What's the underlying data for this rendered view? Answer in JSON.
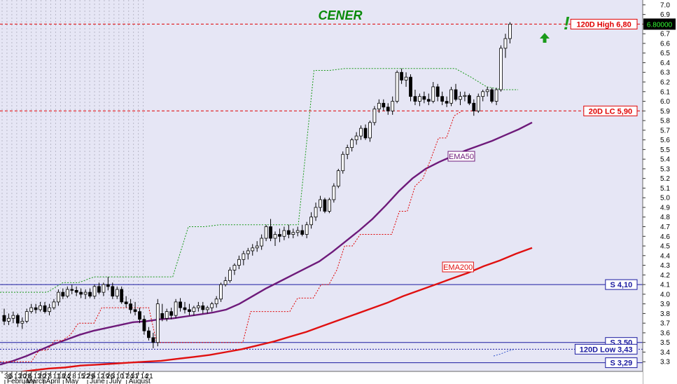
{
  "chart_data": {
    "type": "candlestick",
    "title": "CENER",
    "ylim": [
      3.2,
      7.05
    ],
    "y_ticks": [
      "3.3",
      "3.4",
      "3.5",
      "3.6",
      "3.7",
      "3.8",
      "3.9",
      "4.0",
      "4.1",
      "4.2",
      "4.3",
      "4.4",
      "4.5",
      "4.6",
      "4.7",
      "4.8",
      "4.9",
      "5.0",
      "5.1",
      "5.2",
      "5.3",
      "5.4",
      "5.5",
      "5.6",
      "5.7",
      "5.8",
      "5.9",
      "6.0",
      "6.1",
      "6.2",
      "6.3",
      "6.4",
      "6.5",
      "6.6",
      "6.7",
      "6.8",
      "6.9",
      "7.0"
    ],
    "x_day_ticks": [
      "30",
      "6",
      "13",
      "20",
      "28",
      "6",
      "13",
      "20",
      "27",
      "3",
      "11",
      "18",
      "24",
      "2",
      "8",
      "15",
      "22",
      "29",
      "6",
      "12",
      "19",
      "26",
      "3",
      "10",
      "17",
      "24",
      "31",
      "7",
      "14",
      "21"
    ],
    "x_month_labels": [
      "February",
      "March",
      "April",
      "May",
      "June",
      "July",
      "August"
    ],
    "candles": [
      [
        3.78,
        3.85,
        3.68,
        3.72
      ],
      [
        3.72,
        3.8,
        3.68,
        3.75
      ],
      [
        3.75,
        3.82,
        3.7,
        3.78
      ],
      [
        3.78,
        3.8,
        3.66,
        3.7
      ],
      [
        3.7,
        3.76,
        3.64,
        3.72
      ],
      [
        3.72,
        3.85,
        3.7,
        3.82
      ],
      [
        3.82,
        3.9,
        3.8,
        3.86
      ],
      [
        3.86,
        3.9,
        3.8,
        3.84
      ],
      [
        3.84,
        3.92,
        3.82,
        3.88
      ],
      [
        3.88,
        3.92,
        3.8,
        3.82
      ],
      [
        3.82,
        3.9,
        3.78,
        3.86
      ],
      [
        3.86,
        3.95,
        3.84,
        3.92
      ],
      [
        3.92,
        4.05,
        3.88,
        4.02
      ],
      [
        4.02,
        4.06,
        3.95,
        3.98
      ],
      [
        3.98,
        4.08,
        3.96,
        4.05
      ],
      [
        4.05,
        4.1,
        4.0,
        4.04
      ],
      [
        4.04,
        4.08,
        3.98,
        4.02
      ],
      [
        4.02,
        4.06,
        3.96,
        4.0
      ],
      [
        4.0,
        4.05,
        3.95,
        4.02
      ],
      [
        4.02,
        4.06,
        3.96,
        3.98
      ],
      [
        3.98,
        4.1,
        3.95,
        4.08
      ],
      [
        4.08,
        4.12,
        4.0,
        4.02
      ],
      [
        4.02,
        4.12,
        3.98,
        4.1
      ],
      [
        4.1,
        4.18,
        4.04,
        4.08
      ],
      [
        4.08,
        4.12,
        3.95,
        3.98
      ],
      [
        3.98,
        4.08,
        3.95,
        4.05
      ],
      [
        4.05,
        4.08,
        3.9,
        3.92
      ],
      [
        3.92,
        3.98,
        3.86,
        3.9
      ],
      [
        3.9,
        3.95,
        3.8,
        3.84
      ],
      [
        3.84,
        3.92,
        3.78,
        3.82
      ],
      [
        3.82,
        3.86,
        3.7,
        3.74
      ],
      [
        3.74,
        3.78,
        3.58,
        3.62
      ],
      [
        3.62,
        3.66,
        3.52,
        3.55
      ],
      [
        3.55,
        3.6,
        3.44,
        3.5
      ],
      [
        3.5,
        3.95,
        3.46,
        3.9
      ],
      [
        3.8,
        3.9,
        3.72,
        3.75
      ],
      [
        3.75,
        3.85,
        3.72,
        3.82
      ],
      [
        3.82,
        3.86,
        3.74,
        3.78
      ],
      [
        3.78,
        3.95,
        3.75,
        3.92
      ],
      [
        3.92,
        3.96,
        3.82,
        3.86
      ],
      [
        3.86,
        3.92,
        3.8,
        3.84
      ],
      [
        3.84,
        3.9,
        3.78,
        3.82
      ],
      [
        3.82,
        3.88,
        3.78,
        3.86
      ],
      [
        3.86,
        3.92,
        3.82,
        3.88
      ],
      [
        3.88,
        3.92,
        3.8,
        3.84
      ],
      [
        3.84,
        3.88,
        3.8,
        3.86
      ],
      [
        3.86,
        3.92,
        3.82,
        3.9
      ],
      [
        3.9,
        3.98,
        3.86,
        3.95
      ],
      [
        3.95,
        4.12,
        3.92,
        4.1
      ],
      [
        4.1,
        4.18,
        4.08,
        4.14
      ],
      [
        4.14,
        4.28,
        4.12,
        4.25
      ],
      [
        4.25,
        4.32,
        4.2,
        4.3
      ],
      [
        4.3,
        4.4,
        4.26,
        4.36
      ],
      [
        4.36,
        4.45,
        4.3,
        4.42
      ],
      [
        4.42,
        4.48,
        4.36,
        4.45
      ],
      [
        4.45,
        4.52,
        4.4,
        4.48
      ],
      [
        4.48,
        4.55,
        4.44,
        4.5
      ],
      [
        4.5,
        4.62,
        4.46,
        4.58
      ],
      [
        4.58,
        4.72,
        4.55,
        4.7
      ],
      [
        4.7,
        4.78,
        4.55,
        4.58
      ],
      [
        4.58,
        4.65,
        4.5,
        4.62
      ],
      [
        4.62,
        4.68,
        4.54,
        4.6
      ],
      [
        4.6,
        4.7,
        4.56,
        4.66
      ],
      [
        4.66,
        4.72,
        4.58,
        4.62
      ],
      [
        4.62,
        4.68,
        4.58,
        4.64
      ],
      [
        4.64,
        4.7,
        4.6,
        4.66
      ],
      [
        4.66,
        4.72,
        4.6,
        4.62
      ],
      [
        4.62,
        4.75,
        4.58,
        4.72
      ],
      [
        4.72,
        4.85,
        4.68,
        4.8
      ],
      [
        4.8,
        4.95,
        4.76,
        4.9
      ],
      [
        4.9,
        5.02,
        4.86,
        4.98
      ],
      [
        4.98,
        5.0,
        4.84,
        4.86
      ],
      [
        4.86,
        5.0,
        4.84,
        4.98
      ],
      [
        4.98,
        5.15,
        4.95,
        5.12
      ],
      [
        5.12,
        5.3,
        5.1,
        5.28
      ],
      [
        5.28,
        5.48,
        5.25,
        5.45
      ],
      [
        5.45,
        5.55,
        5.4,
        5.52
      ],
      [
        5.52,
        5.62,
        5.48,
        5.6
      ],
      [
        5.6,
        5.68,
        5.55,
        5.64
      ],
      [
        5.64,
        5.75,
        5.6,
        5.72
      ],
      [
        5.72,
        5.76,
        5.6,
        5.62
      ],
      [
        5.62,
        5.8,
        5.58,
        5.78
      ],
      [
        5.78,
        5.95,
        5.75,
        5.92
      ],
      [
        5.92,
        6.02,
        5.88,
        5.98
      ],
      [
        5.98,
        6.02,
        5.9,
        5.94
      ],
      [
        5.94,
        5.98,
        5.86,
        5.9
      ],
      [
        5.9,
        6.05,
        5.86,
        6.0
      ],
      [
        6.0,
        6.32,
        5.98,
        6.3
      ],
      [
        6.3,
        6.34,
        6.18,
        6.22
      ],
      [
        6.22,
        6.3,
        6.15,
        6.25
      ],
      [
        6.25,
        6.28,
        6.0,
        6.05
      ],
      [
        6.05,
        6.12,
        5.96,
        6.0
      ],
      [
        6.0,
        6.08,
        5.95,
        6.05
      ],
      [
        6.05,
        6.1,
        5.98,
        6.02
      ],
      [
        6.02,
        6.08,
        5.96,
        6.0
      ],
      [
        6.0,
        6.2,
        5.98,
        6.15
      ],
      [
        6.15,
        6.18,
        6.0,
        6.05
      ],
      [
        6.05,
        6.1,
        5.96,
        6.0
      ],
      [
        6.0,
        6.05,
        5.94,
        5.98
      ],
      [
        5.98,
        6.15,
        5.95,
        6.12
      ],
      [
        6.12,
        6.18,
        6.0,
        6.02
      ],
      [
        6.02,
        6.1,
        5.96,
        6.05
      ],
      [
        6.05,
        6.1,
        6.0,
        6.06
      ],
      [
        6.06,
        6.08,
        5.96,
        5.98
      ],
      [
        5.98,
        6.02,
        5.85,
        5.9
      ],
      [
        5.9,
        6.08,
        5.88,
        6.05
      ],
      [
        6.05,
        6.12,
        6.0,
        6.1
      ],
      [
        6.1,
        6.15,
        6.05,
        6.12
      ],
      [
        6.12,
        6.14,
        5.98,
        6.0
      ],
      [
        6.0,
        6.14,
        5.96,
        6.12
      ],
      [
        6.12,
        6.58,
        6.1,
        6.55
      ],
      [
        6.55,
        6.7,
        6.45,
        6.65
      ],
      [
        6.65,
        6.82,
        6.6,
        6.8
      ]
    ],
    "ema50": [
      3.27,
      3.31,
      3.36,
      3.42,
      3.48,
      3.53,
      3.58,
      3.62,
      3.65,
      3.68,
      3.71,
      3.72,
      3.74,
      3.75,
      3.77,
      3.79,
      3.81,
      3.84,
      3.9,
      3.98,
      4.06,
      4.13,
      4.2,
      4.27,
      4.34,
      4.44,
      4.55,
      4.66,
      4.78,
      4.92,
      5.07,
      5.2,
      5.3,
      5.37,
      5.43,
      5.49,
      5.54,
      5.59,
      5.65,
      5.71,
      5.78
    ],
    "ema200": [
      3.17,
      3.19,
      3.21,
      3.23,
      3.24,
      3.26,
      3.27,
      3.28,
      3.29,
      3.3,
      3.31,
      3.33,
      3.35,
      3.37,
      3.4,
      3.43,
      3.47,
      3.51,
      3.56,
      3.61,
      3.67,
      3.73,
      3.79,
      3.85,
      3.91,
      3.98,
      4.04,
      4.1,
      4.16,
      4.22,
      4.29,
      4.35,
      4.42,
      4.48
    ],
    "lc20": [
      3.3,
      3.3,
      3.3,
      3.3,
      3.3,
      3.42,
      3.42,
      3.52,
      3.52,
      3.58,
      3.7,
      3.7,
      3.7,
      3.86,
      3.86,
      3.86,
      3.86,
      3.86,
      3.86,
      3.86,
      3.5,
      3.5,
      3.5,
      3.5,
      3.5,
      3.5,
      3.5,
      3.5,
      3.5,
      3.5,
      3.5,
      3.5,
      3.82,
      3.82,
      3.82,
      3.82,
      3.82,
      3.82,
      3.96,
      3.96,
      3.96,
      4.1,
      4.1,
      4.25,
      4.5,
      4.5,
      4.62,
      4.62,
      4.62,
      4.62,
      4.62,
      4.86,
      4.86,
      5.12,
      5.2,
      5.4,
      5.62,
      5.62,
      5.85,
      5.9
    ],
    "dash_green": [
      4.02,
      4.02,
      4.02,
      4.02,
      4.12,
      4.12,
      4.18,
      4.18,
      4.18,
      4.18,
      4.18,
      4.18,
      4.7,
      4.7,
      4.72,
      4.72,
      4.72,
      4.72,
      4.72,
      4.72,
      6.32,
      6.32,
      6.34,
      6.34,
      6.34,
      6.34,
      6.34,
      6.34,
      6.34,
      6.34,
      6.25,
      6.15,
      6.12,
      6.12
    ],
    "dash_blue": [
      3.36,
      3.38,
      3.41,
      3.43
    ],
    "hlines": [
      {
        "value": 6.8,
        "label": "120D High 6,80",
        "color": "#e00000",
        "style": "dashed"
      },
      {
        "value": 5.9,
        "label": "20D LC 5,90",
        "color": "#e00000",
        "style": "dashed"
      },
      {
        "value": 4.1,
        "label": "S 4,10",
        "color": "#1a1aa0",
        "style": "solid"
      },
      {
        "value": 3.5,
        "label": "S 3,50",
        "color": "#1a1aa0",
        "style": "solid"
      },
      {
        "value": 3.43,
        "label": "120D Low 3,43",
        "color": "#1a1aa0",
        "style": "dotted"
      },
      {
        "value": 3.29,
        "label": "S 3,29",
        "color": "#1a1aa0",
        "style": "solid"
      }
    ],
    "series_labels": {
      "ema50": "EMA50",
      "ema200": "EMA200"
    },
    "price_badge": "6.80000",
    "signal_marks": {
      "exclamation": "!"
    },
    "colors": {
      "background": "#e6e6f5",
      "ema50": "#6e1a7a",
      "ema200": "#e01010",
      "title": "#0a8a0a",
      "signal": "#1a9a1a",
      "price_badge_bg": "#000000",
      "price_badge_text": "#33ff33"
    }
  }
}
